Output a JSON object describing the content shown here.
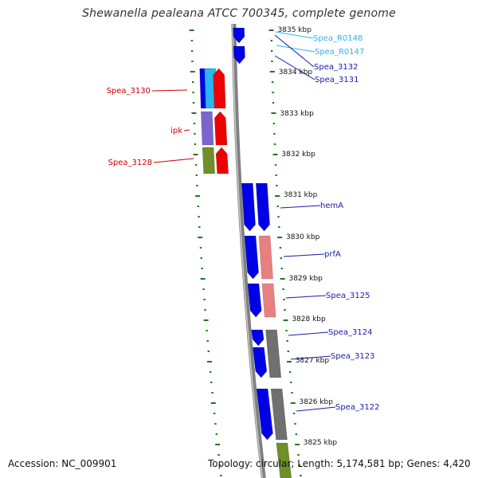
{
  "title": "Shewanella pealeana ATCC 700345, complete genome",
  "accession_text": "Accession: NC_009901",
  "topology_text": "Topology: circular; Length: 5,174,581 bp; Genes: 4,420",
  "colors": {
    "backbone": "#808080",
    "ruler": "#1a7a1a",
    "cds_forward": "#0000e6",
    "cds_reverse": "#ee0000",
    "rrna": "#2ab4f0",
    "blue_label": "#1a1aaa",
    "red_label": "#cc0000",
    "cyan_label": "#2ab4f0",
    "purple": "#7a66cc",
    "olive": "#6f8f2a",
    "salmon": "#e88080",
    "gray": "#707070"
  },
  "scale_labels": [
    "3835 kbp",
    "3834 kbp",
    "3833 kbp",
    "3832 kbp",
    "3831 kbp",
    "3830 kbp",
    "3829 kbp",
    "3828 kbp",
    "3827 kbp",
    "3826 kbp",
    "3825 kbp"
  ],
  "feature_labels": [
    {
      "text": "Spea_R0148",
      "color": "cyan_label",
      "side": "right"
    },
    {
      "text": "Spea_R0147",
      "color": "cyan_label",
      "side": "right"
    },
    {
      "text": "Spea_3132",
      "color": "blue_label",
      "side": "right"
    },
    {
      "text": "Spea_3131",
      "color": "blue_label",
      "side": "right"
    },
    {
      "text": "Spea_3130",
      "color": "red_label",
      "side": "left"
    },
    {
      "text": "ipk",
      "color": "red_label",
      "side": "left"
    },
    {
      "text": "Spea_3128",
      "color": "red_label",
      "side": "left"
    },
    {
      "text": "hemA",
      "color": "blue_label",
      "side": "right"
    },
    {
      "text": "prfA",
      "color": "blue_label",
      "side": "right"
    },
    {
      "text": "Spea_3125",
      "color": "blue_label",
      "side": "right"
    },
    {
      "text": "Spea_3124",
      "color": "blue_label",
      "side": "right"
    },
    {
      "text": "Spea_3123",
      "color": "blue_label",
      "side": "right"
    },
    {
      "text": "Spea_3122",
      "color": "blue_label",
      "side": "right"
    }
  ]
}
